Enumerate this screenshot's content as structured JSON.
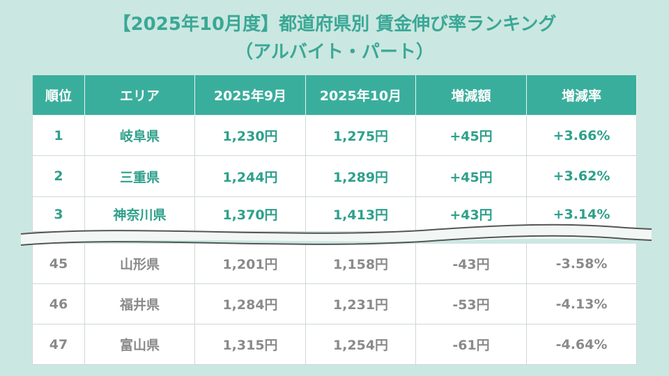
{
  "header": {
    "title_line1": "【2025年10月度】都道府県別 賃金伸び率ランキング",
    "title_line2": "（アルバイト・パート）"
  },
  "table": {
    "columns": [
      "順位",
      "エリア",
      "2025年9月",
      "2025年10月",
      "増減額",
      "増減率"
    ],
    "top_rows": [
      [
        "1",
        "岐阜県",
        "1,230円",
        "1,275円",
        "+45円",
        "+3.66%"
      ],
      [
        "2",
        "三重県",
        "1,244円",
        "1,289円",
        "+45円",
        "+3.62%"
      ],
      [
        "3",
        "神奈川県",
        "1,370円",
        "1,413円",
        "+43円",
        "+3.14%"
      ]
    ],
    "bottom_rows": [
      [
        "45",
        "山形県",
        "1,201円",
        "1,158円",
        "-43円",
        "-3.58%"
      ],
      [
        "46",
        "福井県",
        "1,284円",
        "1,231円",
        "-53円",
        "-4.13%"
      ],
      [
        "47",
        "富山県",
        "1,315円",
        "1,254円",
        "-61円",
        "-4.64%"
      ]
    ]
  }
}
